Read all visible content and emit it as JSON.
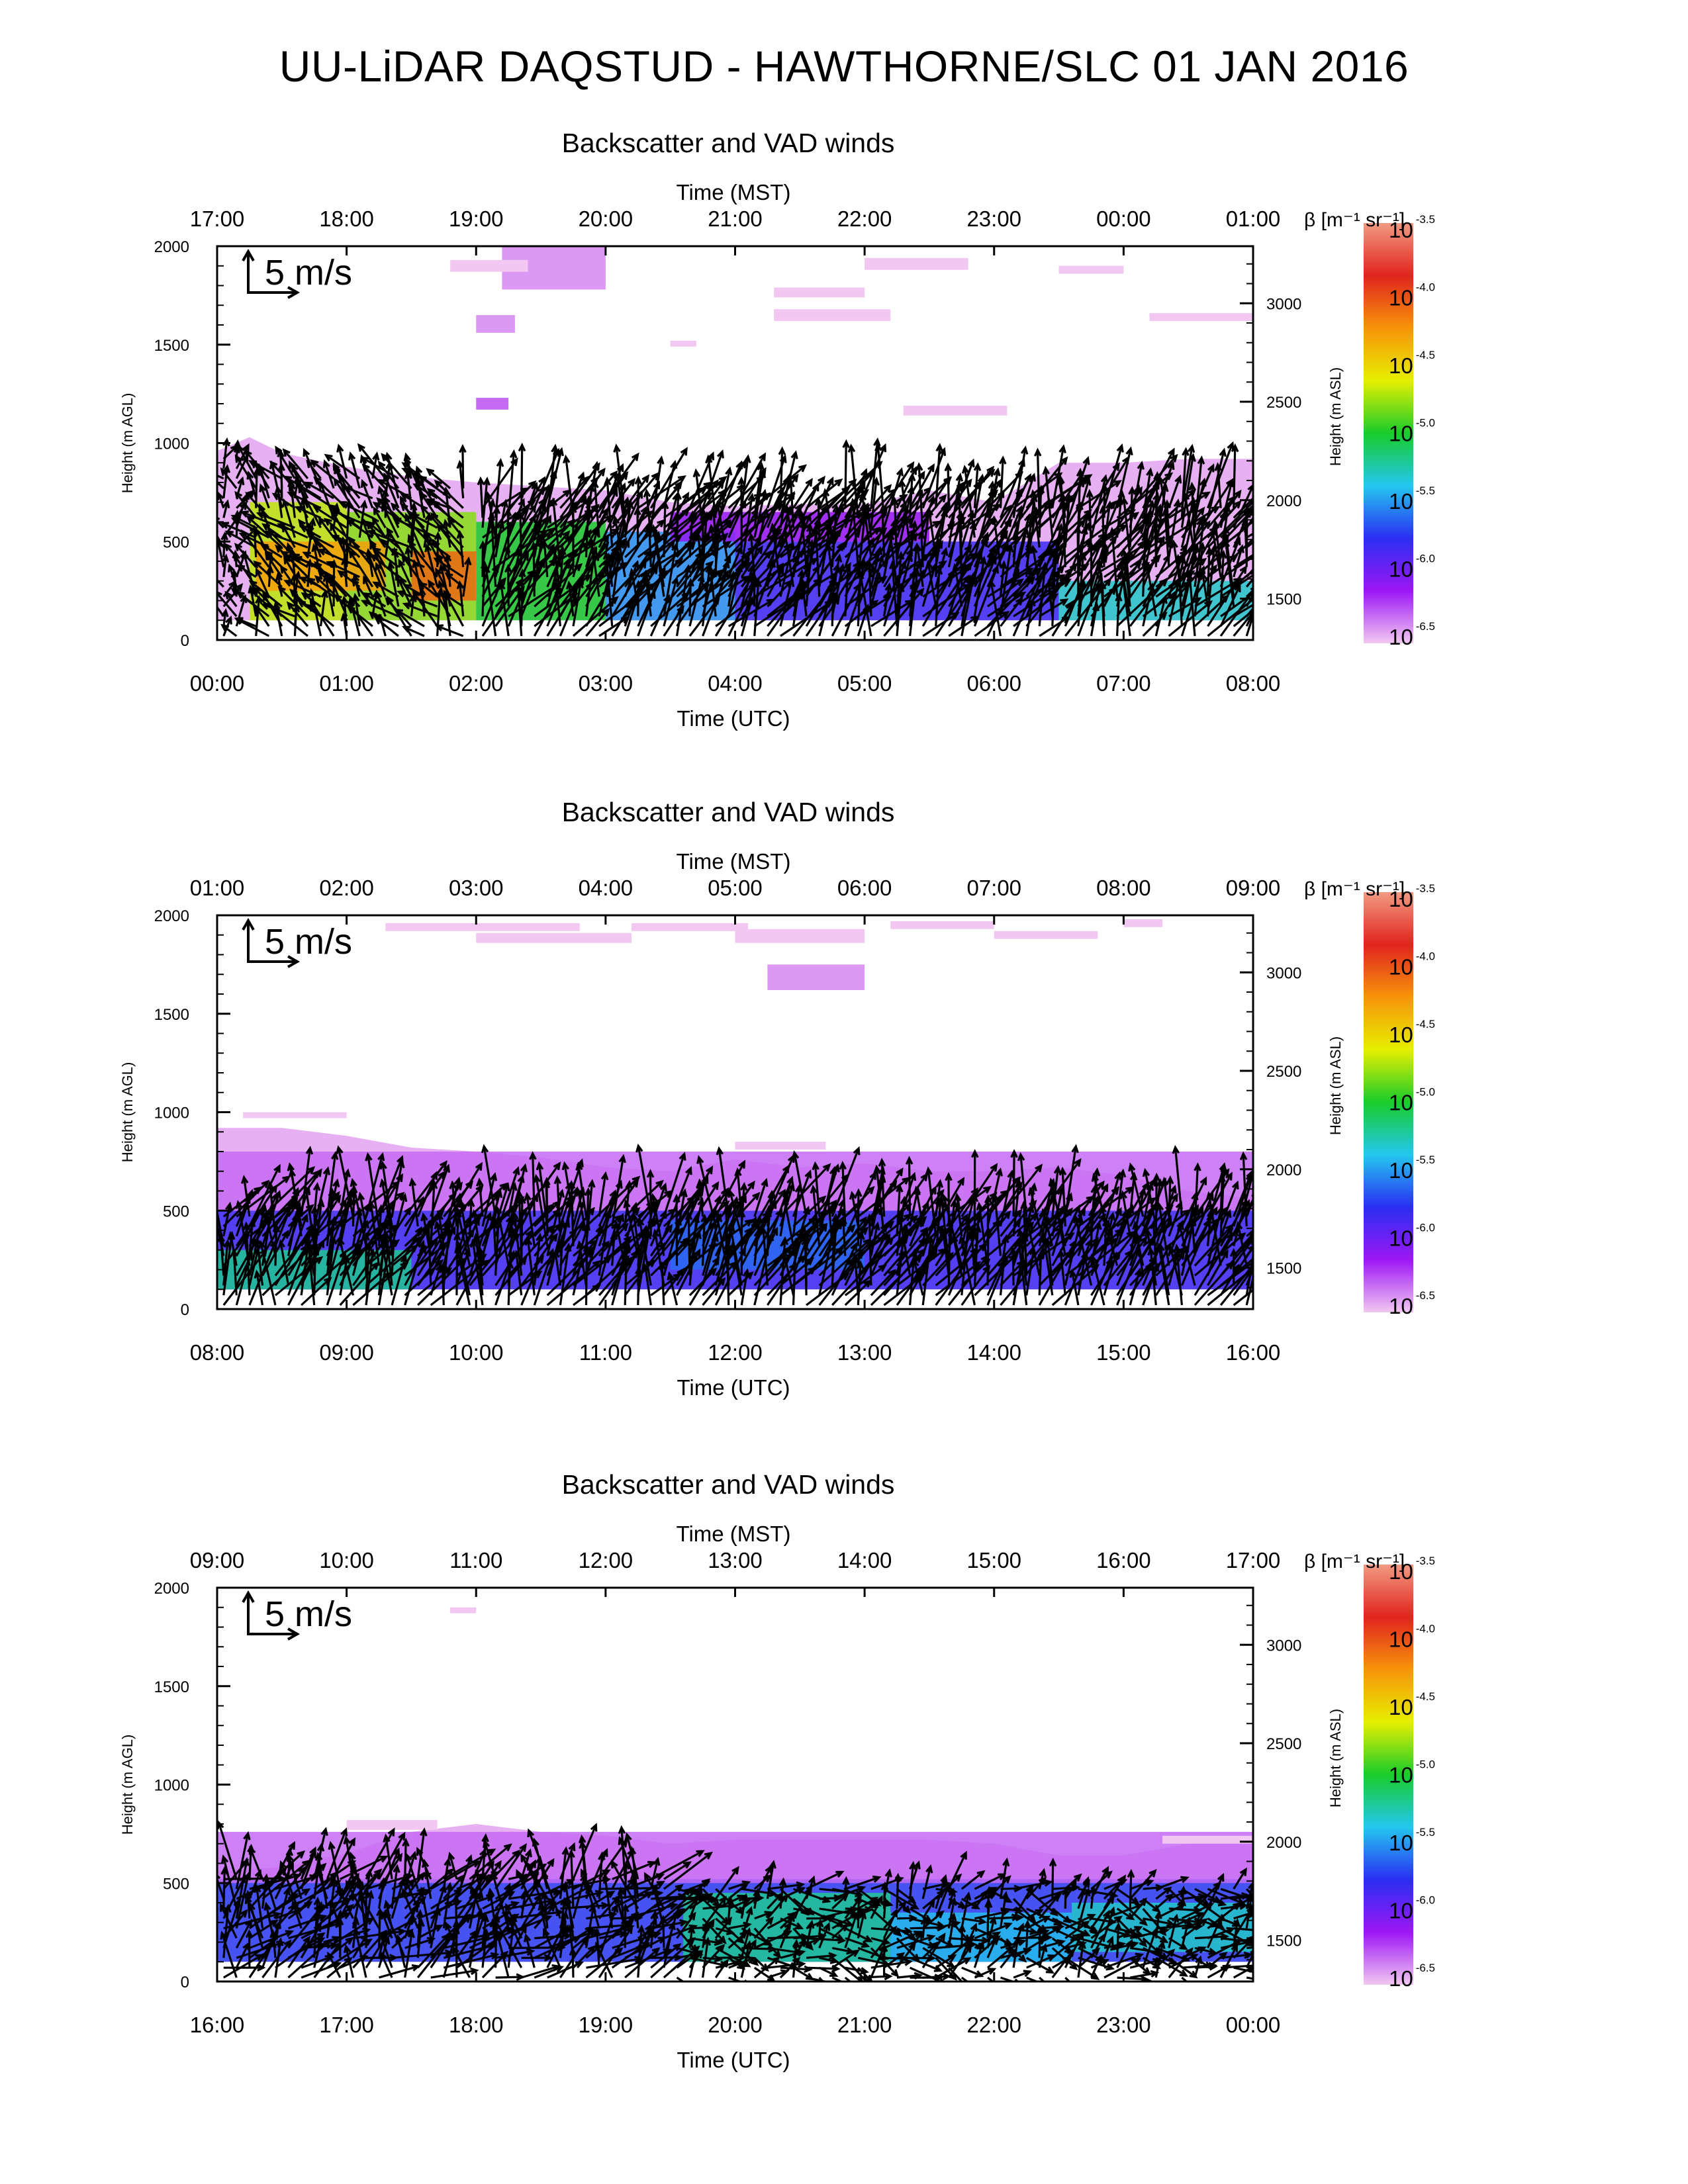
{
  "page": {
    "title": "UU-LiDAR DAQSTUD - HAWTHORNE/SLC 01 JAN 2016"
  },
  "colors": {
    "colormap": [
      "#f2c8f2",
      "#9d17f5",
      "#2a2ef2",
      "#24c7ef",
      "#18cc2a",
      "#e6ef00",
      "#f7940a",
      "#e0241e",
      "#f29a82"
    ],
    "arrows": "#000000",
    "axes": "#000000"
  },
  "chart_data": [
    {
      "type": "heatmap",
      "title": "Backscatter and VAD winds",
      "top_axis_label": "Time (MST)",
      "top_ticks": [
        "17:00",
        "18:00",
        "19:00",
        "20:00",
        "21:00",
        "22:00",
        "23:00",
        "00:00",
        "01:00"
      ],
      "xlabel": "Time (UTC)",
      "x_ticks": [
        "00:00",
        "01:00",
        "02:00",
        "03:00",
        "04:00",
        "05:00",
        "06:00",
        "07:00",
        "08:00"
      ],
      "xlim_hours": [
        0,
        8
      ],
      "ylabel": "Height (m AGL)",
      "y_ticks": [
        0,
        500,
        1000,
        1500,
        2000
      ],
      "ylim": [
        0,
        2000
      ],
      "right_ylabel": "Height (m ASL)",
      "right_ticks": [
        1500,
        2000,
        2500,
        3000
      ],
      "colorbar_label": "β [m⁻¹ sr⁻¹]",
      "colorbar_ticks": [
        {
          "base": "10",
          "exp": "-3.5"
        },
        {
          "base": "10",
          "exp": "-4.0"
        },
        {
          "base": "10",
          "exp": "-4.5"
        },
        {
          "base": "10",
          "exp": "-5.0"
        },
        {
          "base": "10",
          "exp": "-5.5"
        },
        {
          "base": "10",
          "exp": "-6.0"
        },
        {
          "base": "10",
          "exp": "-6.5"
        }
      ],
      "colorbar_range_log10": [
        -6.5,
        -3.5
      ],
      "wind_scale_label": "5 m/s",
      "wind_scale_ms": 5,
      "aerosol_top_m": [
        [
          0,
          960
        ],
        [
          0.25,
          1030
        ],
        [
          0.5,
          950
        ],
        [
          1,
          880
        ],
        [
          1.5,
          830
        ],
        [
          2,
          800
        ],
        [
          2.5,
          780
        ],
        [
          3,
          760
        ],
        [
          3.5,
          700
        ],
        [
          4,
          680
        ],
        [
          4.5,
          690
        ],
        [
          5,
          690
        ],
        [
          5.5,
          760
        ],
        [
          6,
          700
        ],
        [
          6.5,
          900
        ],
        [
          7,
          900
        ],
        [
          7.5,
          920
        ],
        [
          8,
          920
        ]
      ],
      "layers": [
        {
          "t0": 0.25,
          "t1": 1.0,
          "z0": 100,
          "z1": 700,
          "log_beta": -4.7
        },
        {
          "t0": 1.0,
          "t1": 2.0,
          "z0": 100,
          "z1": 650,
          "log_beta": -4.8
        },
        {
          "t0": 1.5,
          "t1": 2.0,
          "z0": 200,
          "z1": 450,
          "log_beta": -4.1
        },
        {
          "t0": 0.3,
          "t1": 1.3,
          "z0": 250,
          "z1": 500,
          "log_beta": -4.3
        },
        {
          "t0": 2.0,
          "t1": 3.0,
          "z0": 100,
          "z1": 600,
          "log_beta": -5.0
        },
        {
          "t0": 3.0,
          "t1": 4.0,
          "z0": 100,
          "z1": 550,
          "log_beta": -5.5
        },
        {
          "t0": 4.0,
          "t1": 6.5,
          "z0": 100,
          "z1": 500,
          "log_beta": -5.8
        },
        {
          "t0": 6.5,
          "t1": 8.0,
          "z0": 100,
          "z1": 300,
          "log_beta": -5.3
        },
        {
          "t0": 3.5,
          "t1": 5.5,
          "z0": 500,
          "z1": 650,
          "log_beta": -6.1
        }
      ],
      "cloud_patches": [
        {
          "t0": 2.2,
          "t1": 3.0,
          "z0": 1780,
          "z1": 2000,
          "log_beta": -6.4
        },
        {
          "t0": 1.8,
          "t1": 2.4,
          "z0": 1870,
          "z1": 1930,
          "log_beta": -6.6
        },
        {
          "t0": 2.0,
          "t1": 2.3,
          "z0": 1560,
          "z1": 1650,
          "log_beta": -6.4
        },
        {
          "t0": 2.0,
          "t1": 2.25,
          "z0": 1170,
          "z1": 1230,
          "log_beta": -6.3
        },
        {
          "t0": 4.3,
          "t1": 5.0,
          "z0": 1740,
          "z1": 1790,
          "log_beta": -6.6
        },
        {
          "t0": 4.3,
          "t1": 5.2,
          "z0": 1620,
          "z1": 1680,
          "log_beta": -6.7
        },
        {
          "t0": 5.0,
          "t1": 5.8,
          "z0": 1880,
          "z1": 1940,
          "log_beta": -6.7
        },
        {
          "t0": 5.3,
          "t1": 6.1,
          "z0": 1140,
          "z1": 1190,
          "log_beta": -6.6
        },
        {
          "t0": 6.5,
          "t1": 7.0,
          "z0": 1860,
          "z1": 1900,
          "log_beta": -6.8
        },
        {
          "t0": 7.2,
          "t1": 8.0,
          "z0": 1620,
          "z1": 1660,
          "log_beta": -6.8
        },
        {
          "t0": 3.5,
          "t1": 3.7,
          "z0": 1490,
          "z1": 1520,
          "log_beta": -6.8
        }
      ],
      "wind_seed": 11,
      "wind_regimes": [
        {
          "t0": 0.0,
          "t1": 0.25,
          "z0": 0,
          "z1": 950,
          "dir_deg": 100,
          "speed_ms": 2.5,
          "spread_deg": 60
        },
        {
          "t0": 0.25,
          "t1": 2.0,
          "z0": 0,
          "z1": 850,
          "dir_deg": 120,
          "speed_ms": 3.5,
          "spread_deg": 40
        },
        {
          "t0": 2.0,
          "t1": 8.0,
          "z0": 0,
          "z1": 700,
          "dir_deg": 65,
          "speed_ms": 5.5,
          "spread_deg": 35
        }
      ]
    },
    {
      "type": "heatmap",
      "title": "Backscatter and VAD winds",
      "top_axis_label": "Time (MST)",
      "top_ticks": [
        "01:00",
        "02:00",
        "03:00",
        "04:00",
        "05:00",
        "06:00",
        "07:00",
        "08:00",
        "09:00"
      ],
      "xlabel": "Time (UTC)",
      "x_ticks": [
        "08:00",
        "09:00",
        "10:00",
        "11:00",
        "12:00",
        "13:00",
        "14:00",
        "15:00",
        "16:00"
      ],
      "xlim_hours": [
        8,
        16
      ],
      "ylabel": "Height (m AGL)",
      "y_ticks": [
        0,
        500,
        1000,
        1500,
        2000
      ],
      "ylim": [
        0,
        2000
      ],
      "right_ylabel": "Height (m ASL)",
      "right_ticks": [
        1500,
        2000,
        2500,
        3000
      ],
      "colorbar_label": "β [m⁻¹ sr⁻¹]",
      "colorbar_ticks": [
        {
          "base": "10",
          "exp": "-3.5"
        },
        {
          "base": "10",
          "exp": "-4.0"
        },
        {
          "base": "10",
          "exp": "-4.5"
        },
        {
          "base": "10",
          "exp": "-5.0"
        },
        {
          "base": "10",
          "exp": "-5.5"
        },
        {
          "base": "10",
          "exp": "-6.0"
        },
        {
          "base": "10",
          "exp": "-6.5"
        }
      ],
      "colorbar_range_log10": [
        -6.5,
        -3.5
      ],
      "wind_scale_label": "5 m/s",
      "wind_scale_ms": 5,
      "aerosol_top_m": [
        [
          8,
          920
        ],
        [
          8.5,
          920
        ],
        [
          9,
          880
        ],
        [
          9.5,
          820
        ],
        [
          10,
          800
        ],
        [
          10.5,
          770
        ],
        [
          11,
          720
        ],
        [
          11.5,
          700
        ],
        [
          12,
          760
        ],
        [
          12.5,
          720
        ],
        [
          13,
          740
        ],
        [
          13.5,
          700
        ],
        [
          14,
          700
        ],
        [
          14.5,
          720
        ],
        [
          15,
          680
        ],
        [
          15.5,
          600
        ],
        [
          16,
          560
        ]
      ],
      "layers": [
        {
          "t0": 8.0,
          "t1": 16.0,
          "z0": 100,
          "z1": 500,
          "log_beta": -5.8
        },
        {
          "t0": 8.0,
          "t1": 9.5,
          "z0": 100,
          "z1": 300,
          "log_beta": -5.2
        },
        {
          "t0": 11.5,
          "t1": 13.0,
          "z0": 200,
          "z1": 450,
          "log_beta": -5.6
        },
        {
          "t0": 8.0,
          "t1": 16.0,
          "z0": 500,
          "z1": 800,
          "log_beta": -6.3
        }
      ],
      "cloud_patches": [
        {
          "t0": 9.3,
          "t1": 10.8,
          "z0": 1920,
          "z1": 1960,
          "log_beta": -6.6
        },
        {
          "t0": 10.0,
          "t1": 11.2,
          "z0": 1860,
          "z1": 1910,
          "log_beta": -6.6
        },
        {
          "t0": 11.2,
          "t1": 12.1,
          "z0": 1920,
          "z1": 1960,
          "log_beta": -6.7
        },
        {
          "t0": 12.0,
          "t1": 13.0,
          "z0": 1860,
          "z1": 1930,
          "log_beta": -6.6
        },
        {
          "t0": 13.2,
          "t1": 14.0,
          "z0": 1930,
          "z1": 1970,
          "log_beta": -6.8
        },
        {
          "t0": 14.0,
          "t1": 14.8,
          "z0": 1880,
          "z1": 1920,
          "log_beta": -6.7
        },
        {
          "t0": 15.0,
          "t1": 15.3,
          "z0": 1940,
          "z1": 1980,
          "log_beta": -6.8
        },
        {
          "t0": 12.25,
          "t1": 13.0,
          "z0": 1620,
          "z1": 1750,
          "log_beta": -6.4
        },
        {
          "t0": 8.2,
          "t1": 9.0,
          "z0": 970,
          "z1": 1000,
          "log_beta": -6.7
        },
        {
          "t0": 12.0,
          "t1": 12.7,
          "z0": 810,
          "z1": 850,
          "log_beta": -6.6
        }
      ],
      "wind_seed": 29,
      "wind_regimes": [
        {
          "t0": 8.0,
          "t1": 16.0,
          "z0": 0,
          "z1": 520,
          "dir_deg": 70,
          "speed_ms": 5.5,
          "spread_deg": 35
        }
      ]
    },
    {
      "type": "heatmap",
      "title": "Backscatter and VAD winds",
      "top_axis_label": "Time (MST)",
      "top_ticks": [
        "09:00",
        "10:00",
        "11:00",
        "12:00",
        "13:00",
        "14:00",
        "15:00",
        "16:00",
        "17:00"
      ],
      "xlabel": "Time (UTC)",
      "x_ticks": [
        "16:00",
        "17:00",
        "18:00",
        "19:00",
        "20:00",
        "21:00",
        "22:00",
        "23:00",
        "00:00"
      ],
      "xlim_hours": [
        16,
        24
      ],
      "ylabel": "Height (m AGL)",
      "y_ticks": [
        0,
        500,
        1000,
        1500,
        2000
      ],
      "ylim": [
        0,
        2000
      ],
      "right_ylabel": "Height (m ASL)",
      "right_ticks": [
        1500,
        2000,
        2500,
        3000
      ],
      "colorbar_label": "β [m⁻¹ sr⁻¹]",
      "colorbar_ticks": [
        {
          "base": "10",
          "exp": "-3.5"
        },
        {
          "base": "10",
          "exp": "-4.0"
        },
        {
          "base": "10",
          "exp": "-4.5"
        },
        {
          "base": "10",
          "exp": "-5.0"
        },
        {
          "base": "10",
          "exp": "-5.5"
        },
        {
          "base": "10",
          "exp": "-6.0"
        },
        {
          "base": "10",
          "exp": "-6.5"
        }
      ],
      "colorbar_range_log10": [
        -6.5,
        -3.5
      ],
      "wind_scale_label": "5 m/s",
      "wind_scale_ms": 5,
      "aerosol_top_m": [
        [
          16,
          560
        ],
        [
          16.5,
          580
        ],
        [
          17,
          650
        ],
        [
          17.5,
          760
        ],
        [
          18,
          800
        ],
        [
          18.5,
          760
        ],
        [
          19,
          740
        ],
        [
          19.5,
          700
        ],
        [
          20,
          720
        ],
        [
          20.5,
          720
        ],
        [
          21,
          720
        ],
        [
          21.5,
          720
        ],
        [
          22,
          700
        ],
        [
          22.5,
          640
        ],
        [
          23,
          640
        ],
        [
          23.5,
          700
        ],
        [
          24,
          720
        ]
      ],
      "layers": [
        {
          "t0": 16.0,
          "t1": 24.0,
          "z0": 100,
          "z1": 520,
          "log_beta": -5.7
        },
        {
          "t0": 19.6,
          "t1": 21.2,
          "z0": 100,
          "z1": 450,
          "log_beta": -5.2
        },
        {
          "t0": 21.2,
          "t1": 22.6,
          "z0": 100,
          "z1": 350,
          "log_beta": -5.4
        },
        {
          "t0": 22.6,
          "t1": 24.0,
          "z0": 150,
          "z1": 400,
          "log_beta": -5.3
        },
        {
          "t0": 16.0,
          "t1": 24.0,
          "z0": 500,
          "z1": 760,
          "log_beta": -6.3
        }
      ],
      "cloud_patches": [
        {
          "t0": 17.8,
          "t1": 18.0,
          "z0": 1870,
          "z1": 1900,
          "log_beta": -6.6
        },
        {
          "t0": 17.0,
          "t1": 17.7,
          "z0": 770,
          "z1": 820,
          "log_beta": -6.5
        },
        {
          "t0": 23.3,
          "t1": 24.0,
          "z0": 700,
          "z1": 740,
          "log_beta": -6.7
        }
      ],
      "wind_seed": 47,
      "wind_regimes": [
        {
          "t0": 16.0,
          "t1": 19.5,
          "z0": 0,
          "z1": 560,
          "dir_deg": 60,
          "speed_ms": 4.5,
          "spread_deg": 60
        },
        {
          "t0": 19.5,
          "t1": 24.0,
          "z0": 0,
          "z1": 520,
          "dir_deg": 20,
          "speed_ms": 3.0,
          "spread_deg": 70
        }
      ]
    }
  ]
}
